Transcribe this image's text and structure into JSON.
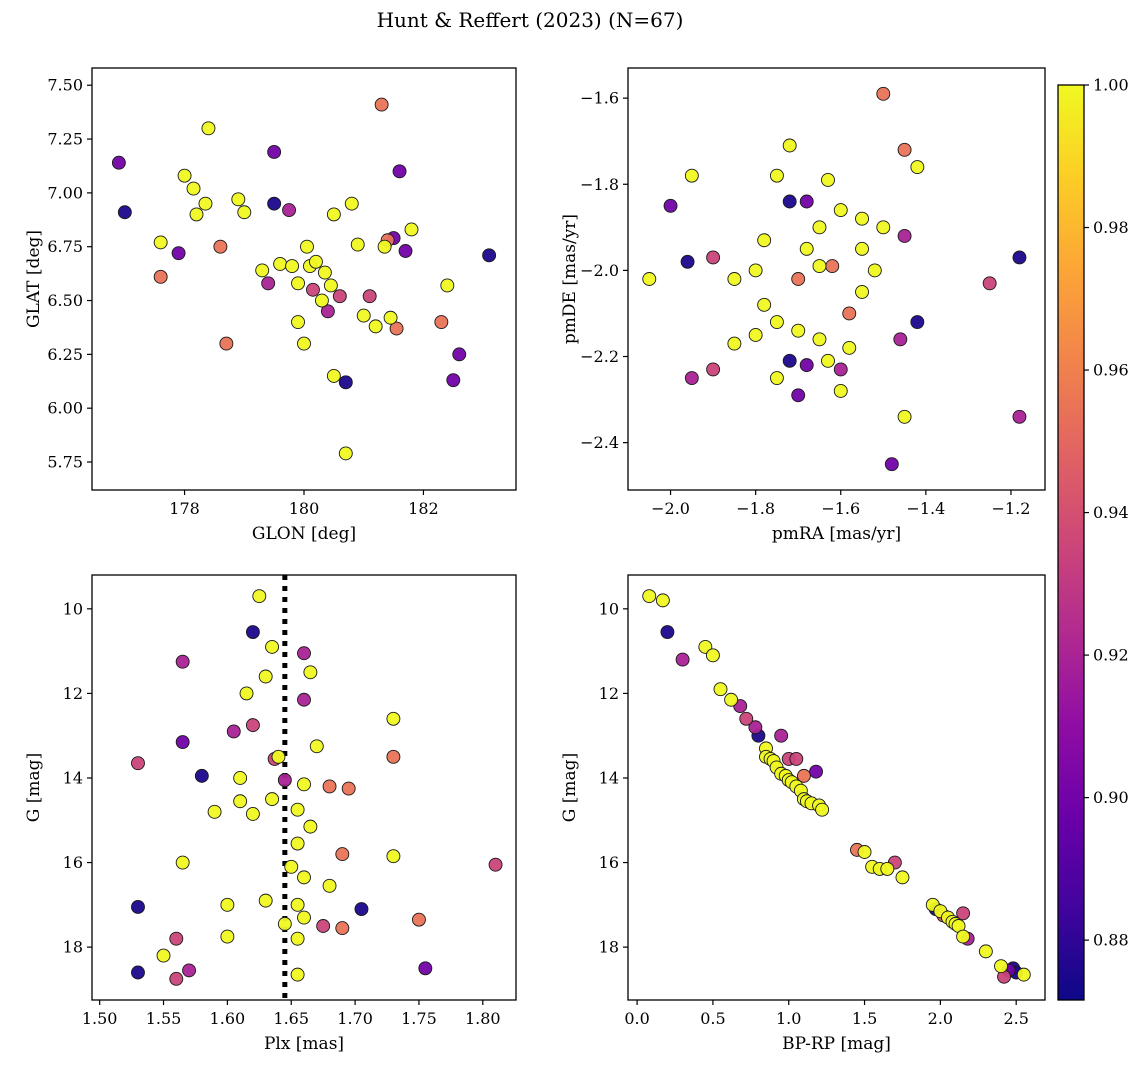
{
  "title": "Hunt & Reffert (2023) (N=67)",
  "colorbar": {
    "vmin": 0.8716,
    "vmax": 1.0,
    "cmap": "plasma",
    "ticks": [
      {
        "v": 1.0,
        "label": "1.00"
      },
      {
        "v": 0.98,
        "label": "0.98"
      },
      {
        "v": 0.96,
        "label": "0.96"
      },
      {
        "v": 0.94,
        "label": "0.94"
      },
      {
        "v": 0.92,
        "label": "0.92"
      },
      {
        "v": 0.9,
        "label": "0.90"
      },
      {
        "v": 0.88,
        "label": "0.88"
      }
    ]
  },
  "chart_data": [
    {
      "type": "scatter",
      "xlabel": "GLON [deg]",
      "ylabel": "GLAT [deg]",
      "xlim": [
        176.45,
        183.55
      ],
      "ylim": [
        5.62,
        7.58
      ],
      "xticks": [
        178,
        180,
        182
      ],
      "xtick_labels": [
        "178",
        "180",
        "182"
      ],
      "yticks": [
        5.75,
        6.0,
        6.25,
        6.5,
        6.75,
        7.0,
        7.25,
        7.5
      ],
      "ytick_labels": [
        "5.75",
        "6.00",
        "6.25",
        "6.50",
        "6.75",
        "7.00",
        "7.25",
        "7.50"
      ],
      "grid": false,
      "points": {
        "x": [
          176.9,
          177.0,
          177.6,
          177.6,
          177.9,
          178.0,
          178.15,
          178.2,
          178.35,
          178.4,
          178.6,
          178.7,
          178.9,
          179.0,
          179.3,
          179.4,
          179.5,
          179.5,
          179.6,
          179.75,
          179.8,
          179.9,
          179.9,
          180.0,
          180.05,
          180.1,
          180.15,
          180.2,
          180.3,
          180.35,
          180.4,
          180.45,
          180.5,
          180.5,
          180.6,
          180.7,
          180.7,
          180.8,
          180.9,
          181.0,
          181.1,
          181.2,
          181.3,
          181.35,
          181.4,
          181.45,
          181.5,
          181.55,
          181.6,
          181.7,
          181.8,
          182.3,
          182.4,
          182.5,
          182.6,
          183.1
        ],
        "y": [
          7.14,
          6.91,
          6.77,
          6.61,
          6.72,
          7.08,
          7.02,
          6.9,
          6.95,
          7.3,
          6.75,
          6.3,
          6.97,
          6.91,
          6.64,
          6.58,
          7.19,
          6.95,
          6.67,
          6.92,
          6.66,
          6.4,
          6.58,
          6.3,
          6.75,
          6.66,
          6.55,
          6.68,
          6.5,
          6.63,
          6.45,
          6.57,
          6.9,
          6.15,
          6.52,
          6.12,
          5.79,
          6.95,
          6.76,
          6.43,
          6.52,
          6.38,
          7.41,
          6.75,
          6.78,
          6.42,
          6.79,
          6.37,
          7.1,
          6.73,
          6.83,
          6.4,
          6.57,
          6.13,
          6.25,
          6.71
        ],
        "c": [
          0.9,
          0.875,
          1.0,
          0.955,
          0.9,
          1.0,
          1.0,
          1.0,
          1.0,
          1.0,
          0.955,
          0.955,
          1.0,
          1.0,
          1.0,
          0.92,
          0.9,
          0.875,
          1.0,
          0.92,
          1.0,
          1.0,
          1.0,
          1.0,
          1.0,
          1.0,
          0.935,
          1.0,
          1.0,
          1.0,
          0.92,
          1.0,
          1.0,
          1.0,
          0.935,
          0.875,
          1.0,
          1.0,
          1.0,
          1.0,
          0.935,
          1.0,
          0.955,
          1.0,
          0.955,
          1.0,
          0.9,
          0.955,
          0.9,
          0.9,
          1.0,
          0.955,
          1.0,
          0.9,
          0.9,
          0.875
        ]
      }
    },
    {
      "type": "scatter",
      "xlabel": "pmRA [mas/yr]",
      "ylabel": "pmDE [mas/yr]",
      "xlim": [
        -2.1,
        -1.12
      ],
      "ylim": [
        -2.51,
        -1.53
      ],
      "xticks": [
        -2.0,
        -1.8,
        -1.6,
        -1.4,
        -1.2
      ],
      "xtick_labels": [
        "−2.0",
        "−1.8",
        "−1.6",
        "−1.4",
        "−1.2"
      ],
      "yticks": [
        -1.6,
        -1.8,
        -2.0,
        -2.2,
        -2.4
      ],
      "ytick_labels": [
        "−1.6",
        "−1.8",
        "−2.0",
        "−2.2",
        "−2.4"
      ],
      "grid": false,
      "points": {
        "x": [
          -1.5,
          -1.72,
          -1.45,
          -1.95,
          -1.75,
          -1.63,
          -1.42,
          -1.68,
          -1.72,
          -2.0,
          -1.6,
          -1.55,
          -1.5,
          -1.65,
          -1.78,
          -1.45,
          -1.96,
          -1.9,
          -2.05,
          -1.85,
          -1.8,
          -1.7,
          -1.65,
          -1.62,
          -1.18,
          -1.25,
          -1.55,
          -1.58,
          -1.75,
          -1.7,
          -1.8,
          -1.85,
          -1.65,
          -1.42,
          -1.46,
          -1.72,
          -1.68,
          -1.63,
          -1.6,
          -1.95,
          -1.9,
          -1.75,
          -1.7,
          -1.6,
          -1.45,
          -1.18,
          -1.48,
          -1.55,
          -1.68,
          -1.52,
          -1.58,
          -1.78
        ],
        "y": [
          -1.59,
          -1.71,
          -1.72,
          -1.78,
          -1.78,
          -1.79,
          -1.76,
          -1.84,
          -1.84,
          -1.85,
          -1.86,
          -1.88,
          -1.9,
          -1.9,
          -1.93,
          -1.92,
          -1.98,
          -1.97,
          -2.02,
          -2.02,
          -2.0,
          -2.02,
          -1.99,
          -1.99,
          -1.97,
          -2.03,
          -2.05,
          -2.1,
          -2.12,
          -2.14,
          -2.15,
          -2.17,
          -2.16,
          -2.12,
          -2.16,
          -2.21,
          -2.22,
          -2.21,
          -2.23,
          -2.25,
          -2.23,
          -2.25,
          -2.29,
          -2.28,
          -2.34,
          -2.34,
          -2.45,
          -1.95,
          -1.95,
          -2.0,
          -2.18,
          -2.08
        ],
        "c": [
          0.955,
          1.0,
          0.955,
          1.0,
          1.0,
          1.0,
          1.0,
          0.9,
          0.875,
          0.9,
          1.0,
          1.0,
          1.0,
          1.0,
          1.0,
          0.92,
          0.875,
          0.935,
          1.0,
          1.0,
          1.0,
          0.955,
          1.0,
          0.955,
          0.875,
          0.935,
          1.0,
          0.955,
          1.0,
          1.0,
          1.0,
          1.0,
          1.0,
          0.875,
          0.92,
          0.875,
          0.9,
          1.0,
          0.92,
          0.92,
          0.935,
          1.0,
          0.9,
          1.0,
          1.0,
          0.92,
          0.9,
          1.0,
          1.0,
          1.0,
          1.0,
          1.0
        ]
      }
    },
    {
      "type": "scatter",
      "xlabel": "Plx [mas]",
      "ylabel": "G [mag]",
      "xlim": [
        1.494,
        1.826
      ],
      "ylim": [
        19.25,
        9.2
      ],
      "vline": 1.645,
      "xticks": [
        1.5,
        1.55,
        1.6,
        1.65,
        1.7,
        1.75,
        1.8
      ],
      "xtick_labels": [
        "1.50",
        "1.55",
        "1.60",
        "1.65",
        "1.70",
        "1.75",
        "1.80"
      ],
      "yticks": [
        10,
        12,
        14,
        16,
        18
      ],
      "ytick_labels": [
        "10",
        "12",
        "14",
        "16",
        "18"
      ],
      "grid": false,
      "points": {
        "x": [
          1.625,
          1.62,
          1.635,
          1.66,
          1.565,
          1.665,
          1.63,
          1.615,
          1.66,
          1.73,
          1.62,
          1.605,
          1.565,
          1.53,
          1.58,
          1.637,
          1.64,
          1.67,
          1.695,
          1.73,
          1.61,
          1.645,
          1.66,
          1.68,
          1.635,
          1.61,
          1.655,
          1.62,
          1.59,
          1.665,
          1.655,
          1.69,
          1.73,
          1.565,
          1.81,
          1.65,
          1.66,
          1.68,
          1.63,
          1.6,
          1.53,
          1.655,
          1.705,
          1.66,
          1.645,
          1.675,
          1.69,
          1.75,
          1.56,
          1.6,
          1.655,
          1.55,
          1.57,
          1.53,
          1.655,
          1.755,
          1.56
        ],
        "y": [
          9.7,
          10.55,
          10.9,
          11.05,
          11.25,
          11.5,
          11.6,
          12.0,
          12.15,
          12.6,
          12.75,
          12.9,
          13.15,
          13.65,
          13.95,
          13.55,
          13.5,
          13.25,
          14.25,
          13.5,
          14.0,
          14.05,
          14.15,
          14.2,
          14.5,
          14.55,
          14.75,
          14.85,
          14.8,
          15.15,
          15.55,
          15.8,
          15.85,
          16.0,
          16.05,
          16.1,
          16.35,
          16.55,
          16.9,
          17.0,
          17.05,
          17.0,
          17.1,
          17.3,
          17.45,
          17.5,
          17.55,
          17.35,
          17.8,
          17.75,
          17.8,
          18.2,
          18.55,
          18.6,
          18.65,
          18.5,
          18.75
        ],
        "c": [
          1.0,
          0.875,
          1.0,
          0.92,
          0.92,
          1.0,
          1.0,
          1.0,
          0.92,
          1.0,
          0.935,
          0.92,
          0.9,
          0.935,
          0.875,
          0.935,
          1.0,
          1.0,
          0.955,
          0.955,
          1.0,
          0.92,
          1.0,
          0.955,
          1.0,
          1.0,
          1.0,
          1.0,
          1.0,
          1.0,
          1.0,
          0.955,
          1.0,
          1.0,
          0.935,
          1.0,
          1.0,
          1.0,
          1.0,
          1.0,
          0.875,
          1.0,
          0.875,
          1.0,
          1.0,
          0.935,
          0.955,
          0.955,
          0.935,
          1.0,
          1.0,
          1.0,
          0.92,
          0.875,
          1.0,
          0.9,
          0.935
        ]
      }
    },
    {
      "type": "scatter",
      "xlabel": "BP-RP [mag]",
      "ylabel": "G [mag]",
      "xlim": [
        -0.06,
        2.69
      ],
      "ylim": [
        19.25,
        9.2
      ],
      "xticks": [
        0.0,
        0.5,
        1.0,
        1.5,
        2.0,
        2.5
      ],
      "xtick_labels": [
        "0.0",
        "0.5",
        "1.0",
        "1.5",
        "2.0",
        "2.5"
      ],
      "yticks": [
        10,
        12,
        14,
        16,
        18
      ],
      "ytick_labels": [
        "10",
        "12",
        "14",
        "16",
        "18"
      ],
      "grid": false,
      "points": {
        "x": [
          0.08,
          0.17,
          0.2,
          0.3,
          0.45,
          0.5,
          0.55,
          0.62,
          0.68,
          0.72,
          0.78,
          0.8,
          0.85,
          0.85,
          0.88,
          0.9,
          0.92,
          0.95,
          0.95,
          0.98,
          1.0,
          1.0,
          1.02,
          1.05,
          1.05,
          1.08,
          1.1,
          1.1,
          1.12,
          1.15,
          1.18,
          1.2,
          1.22,
          1.45,
          1.5,
          1.55,
          1.6,
          1.65,
          1.7,
          1.75,
          1.95,
          1.97,
          2.0,
          2.02,
          2.05,
          2.08,
          2.1,
          2.12,
          2.15,
          2.15,
          2.18,
          2.3,
          2.4,
          2.42,
          2.45,
          2.48,
          2.5,
          2.55
        ],
        "y": [
          9.7,
          9.8,
          10.55,
          11.2,
          10.9,
          11.1,
          11.9,
          12.15,
          12.3,
          12.6,
          12.8,
          13.0,
          13.3,
          13.5,
          13.55,
          13.6,
          13.75,
          13.0,
          13.9,
          13.95,
          13.55,
          14.05,
          14.1,
          13.55,
          14.2,
          14.3,
          13.95,
          14.5,
          14.55,
          14.6,
          13.85,
          14.65,
          14.75,
          15.7,
          15.75,
          16.1,
          16.15,
          16.15,
          16.0,
          16.35,
          17.0,
          17.1,
          17.15,
          17.25,
          17.3,
          17.4,
          17.45,
          17.5,
          17.2,
          17.75,
          17.8,
          18.1,
          18.45,
          18.7,
          18.55,
          18.5,
          18.6,
          18.65
        ],
        "c": [
          1.0,
          1.0,
          0.875,
          0.92,
          1.0,
          1.0,
          1.0,
          1.0,
          0.92,
          0.935,
          0.92,
          0.875,
          1.0,
          1.0,
          1.0,
          1.0,
          1.0,
          0.92,
          1.0,
          1.0,
          0.935,
          1.0,
          1.0,
          0.935,
          1.0,
          1.0,
          0.955,
          1.0,
          1.0,
          1.0,
          0.9,
          1.0,
          1.0,
          0.955,
          1.0,
          1.0,
          1.0,
          1.0,
          0.935,
          1.0,
          1.0,
          0.875,
          1.0,
          0.935,
          1.0,
          1.0,
          1.0,
          1.0,
          0.935,
          1.0,
          0.92,
          1.0,
          1.0,
          0.935,
          0.9,
          0.875,
          0.875,
          1.0
        ]
      }
    }
  ]
}
